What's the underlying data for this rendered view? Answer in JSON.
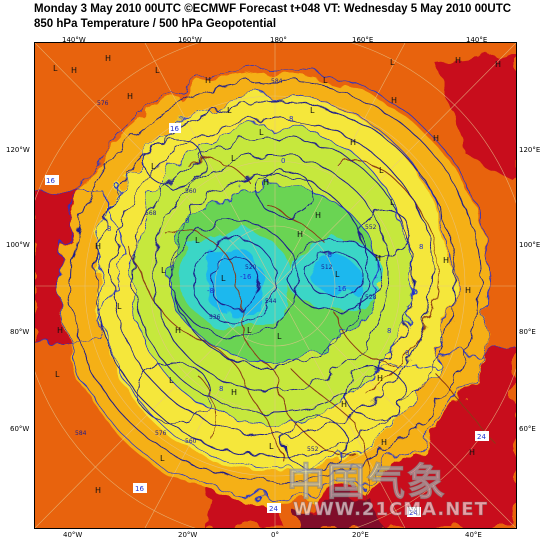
{
  "header": {
    "line1": "Monday 3 May 2010 00UTC ©ECMWF Forecast t+048 VT: Wednesday 5 May 2010 00UTC",
    "line2": "850 hPa Temperature / 500 hPa Geopotential"
  },
  "labels": {
    "top": [
      "140°W",
      "160°W",
      "180°",
      "160°E",
      "140°E"
    ],
    "bottom": [
      "40°W",
      "20°W",
      "0°",
      "20°E",
      "40°E"
    ],
    "left": [
      "120°W",
      "100°W",
      "80°W",
      "60°W"
    ],
    "right": [
      "120°E",
      "100°E",
      "80°E",
      "60°E"
    ]
  },
  "watermark": {
    "chinese": "中国气象",
    "url": "WWW.21CMA.NET"
  },
  "legend_colors": {
    "warm": "#e8630c",
    "hot": "#c8101c",
    "very_hot": "#80102a",
    "mild": "#f5b012",
    "cool": "#f5e73a",
    "cold": "#c6e83c",
    "colder": "#6bd452",
    "very_cold": "#3ad6c6",
    "coldest": "#1eb8ee",
    "contour": "#1e1e8c",
    "isotherm": "#2030d0",
    "coast": "#8b3a18"
  },
  "pressure_marks": {
    "highs": [
      "H",
      "H",
      "H",
      "H",
      "H",
      "H",
      "H",
      "H",
      "H",
      "H",
      "H",
      "H",
      "H",
      "H",
      "H",
      "H",
      "H",
      "H",
      "H",
      "H",
      "H",
      "H"
    ],
    "lows": [
      "L",
      "L",
      "L",
      "L",
      "L",
      "L",
      "L",
      "L",
      "L",
      "L",
      "L",
      "L",
      "L",
      "L",
      "L",
      "L",
      "L",
      "L",
      "L",
      "L",
      "L",
      "L",
      "L",
      "L"
    ]
  },
  "isotherm_labels": [
    "16",
    "16",
    "16",
    "24",
    "24",
    "8",
    "8",
    "8",
    "8",
    "8",
    "0",
    "0",
    "0",
    "-8",
    "-8",
    "-16",
    "-16",
    "24"
  ],
  "contour_labels": [
    "576",
    "584",
    "568",
    "560",
    "552",
    "544",
    "536",
    "528",
    "520",
    "512",
    "576",
    "584",
    "560",
    "552"
  ]
}
